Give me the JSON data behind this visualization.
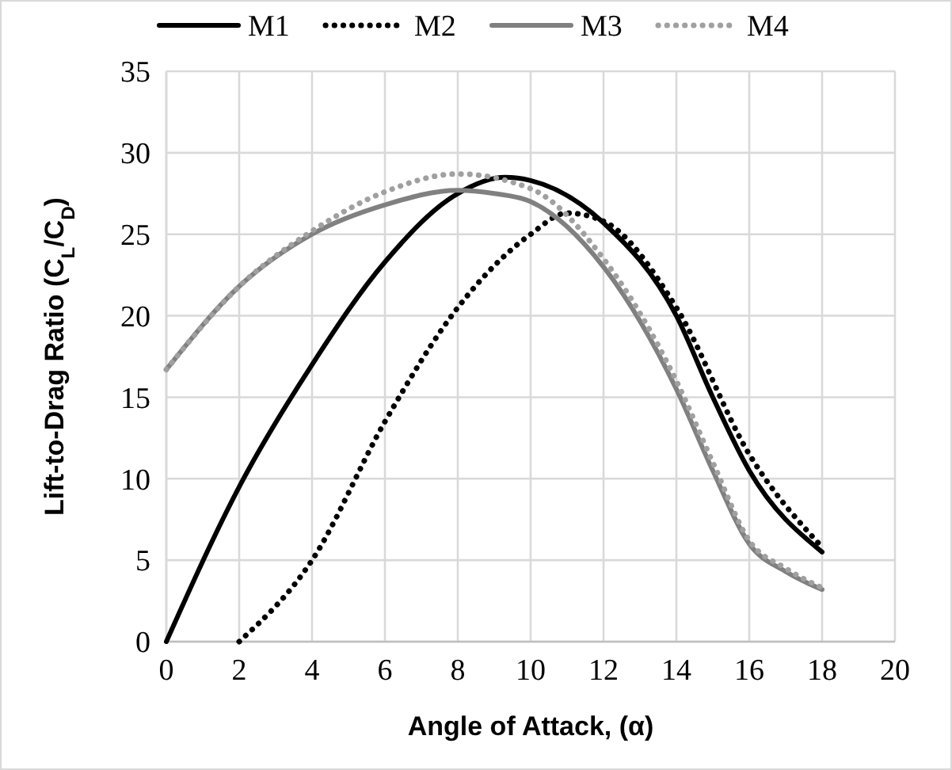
{
  "chart_data": {
    "type": "line",
    "xlabel": "Angle of Attack, (α)",
    "ylabel": "Lift-to-Drag Ratio (C$_{L}$/C$_{D}$)",
    "xlim": [
      0,
      20
    ],
    "ylim": [
      0,
      35
    ],
    "xticks": [
      0,
      2,
      4,
      6,
      8,
      10,
      12,
      14,
      16,
      18,
      20
    ],
    "yticks": [
      0,
      5,
      10,
      15,
      20,
      25,
      30,
      35
    ],
    "grid": true,
    "legend": "top",
    "series": [
      {
        "name": "M1",
        "color": "#000000",
        "line_style": "solid",
        "x": [
          0,
          2,
          4,
          6,
          8,
          9.3,
          10,
          12,
          14,
          15,
          16,
          18
        ],
        "values": [
          0,
          9.5,
          17,
          23.3,
          27.5,
          28.5,
          28.3,
          25.7,
          20,
          15,
          10.5,
          5.5
        ]
      },
      {
        "name": "M2",
        "color": "#000000",
        "line_style": "dotted",
        "x": [
          2,
          4,
          6,
          8,
          10,
          11,
          12,
          14,
          16,
          18
        ],
        "values": [
          0,
          5,
          13.5,
          20.5,
          25,
          26.3,
          25.8,
          20.5,
          11.5,
          5.8
        ]
      },
      {
        "name": "M3",
        "color": "#808080",
        "line_style": "solid",
        "x": [
          0,
          2,
          4,
          6,
          8,
          9,
          10,
          12,
          14,
          15,
          16,
          17,
          18
        ],
        "values": [
          16.7,
          21.8,
          25,
          26.8,
          27.7,
          27.5,
          27,
          23,
          15.5,
          10.5,
          6,
          4.3,
          3.2
        ]
      },
      {
        "name": "M4",
        "color": "#a0a0a0",
        "line_style": "dotted",
        "x": [
          0,
          2,
          4,
          6,
          8,
          10,
          12,
          14,
          15,
          16,
          17,
          18
        ],
        "values": [
          16.7,
          21.8,
          25.2,
          27.6,
          28.7,
          27.8,
          23.5,
          16,
          11,
          6.2,
          4.5,
          3.3
        ]
      }
    ]
  }
}
